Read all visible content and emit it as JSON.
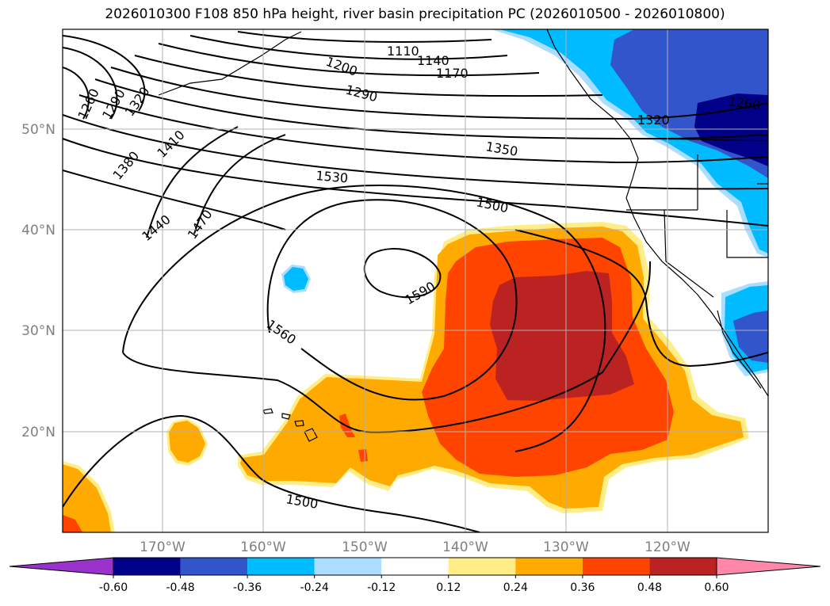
{
  "title": "2026010300 F108 850 hPa height, river basin precipitation PC (2026010500 - 2026010800)",
  "map": {
    "lon_labels": [
      "170°W",
      "160°W",
      "150°W",
      "140°W",
      "130°W",
      "120°W"
    ],
    "lat_labels": [
      "50°N",
      "40°N",
      "30°N",
      "20°N"
    ]
  },
  "contour_labels": [
    "1110",
    "1140",
    "1170",
    "1200",
    "1260",
    "1290",
    "1320",
    "1380",
    "1410",
    "1290",
    "1350",
    "1320",
    "1260",
    "1530",
    "1500",
    "1440",
    "1470",
    "1590",
    "1560",
    "1500"
  ],
  "colorbar": {
    "colors": [
      "#9933cc",
      "#000088",
      "#3355cc",
      "#00bbff",
      "#aaddff",
      "#ffffff",
      "#ffee88",
      "#ffaa00",
      "#ff4400",
      "#bb2222",
      "#ff88aa"
    ],
    "tick_labels": [
      "-0.60",
      "-0.48",
      "-0.36",
      "-0.24",
      "-0.12",
      "0.12",
      "0.24",
      "0.36",
      "0.48",
      "0.60"
    ]
  }
}
